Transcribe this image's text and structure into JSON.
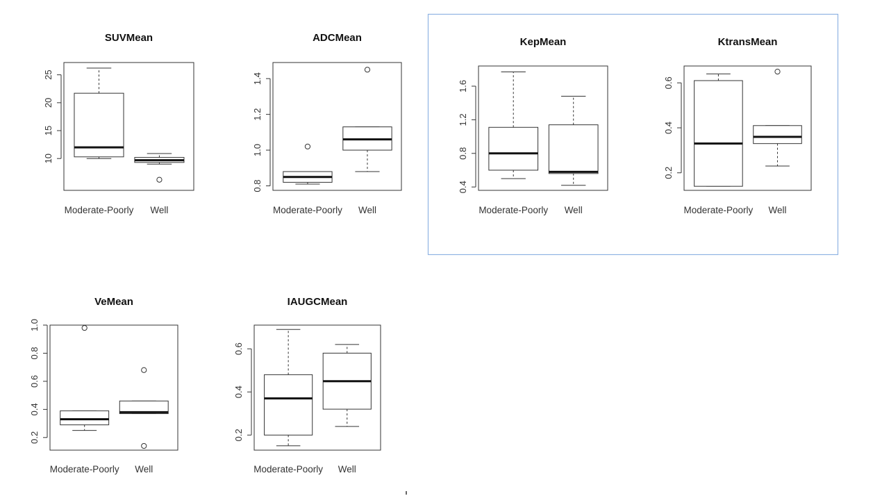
{
  "chart_data": [
    {
      "type": "boxplot",
      "title": "SUVMean",
      "categories": [
        "Moderate-Poorly",
        "Well"
      ],
      "ylim": [
        4.3,
        27.2
      ],
      "yticks": [
        10,
        15,
        20,
        25
      ],
      "boxes": [
        {
          "low": 10.0,
          "q1": 10.3,
          "median": 12.0,
          "q3": 21.7,
          "high": 26.2,
          "outliers": []
        },
        {
          "low": 9.0,
          "q1": 9.3,
          "median": 9.7,
          "q3": 10.2,
          "high": 10.9,
          "outliers": [
            6.2
          ]
        }
      ]
    },
    {
      "type": "boxplot",
      "title": "ADCMean",
      "categories": [
        "Moderate-Poorly",
        "Well"
      ],
      "ylim": [
        0.775,
        1.49
      ],
      "yticks": [
        0.8,
        1.0,
        1.2,
        1.4
      ],
      "yticklabels": [
        "0.8",
        "1.0",
        "1.2",
        "1.4"
      ],
      "boxes": [
        {
          "low": 0.81,
          "q1": 0.82,
          "median": 0.85,
          "q3": 0.88,
          "high": 0.88,
          "outliers": [
            1.02
          ]
        },
        {
          "low": 0.88,
          "q1": 1.0,
          "median": 1.06,
          "q3": 1.13,
          "high": 1.13,
          "outliers": [
            1.45
          ]
        }
      ]
    },
    {
      "type": "boxplot",
      "title": "KepMean",
      "categories": [
        "Moderate-Poorly",
        "Well"
      ],
      "ylim": [
        0.36,
        1.84
      ],
      "yticks": [
        0.4,
        0.8,
        1.2,
        1.6
      ],
      "yticklabels": [
        "0.4",
        "0.8",
        "1.2",
        "1.6"
      ],
      "boxes": [
        {
          "low": 0.5,
          "q1": 0.6,
          "median": 0.8,
          "q3": 1.11,
          "high": 1.77,
          "outliers": []
        },
        {
          "low": 0.42,
          "q1": 0.56,
          "median": 0.58,
          "q3": 1.14,
          "high": 1.48,
          "outliers": []
        }
      ]
    },
    {
      "type": "boxplot",
      "title": "KtransMean",
      "categories": [
        "Moderate-Poorly",
        "Well"
      ],
      "ylim": [
        0.122,
        0.675
      ],
      "yticks": [
        0.2,
        0.4,
        0.6
      ],
      "yticklabels": [
        "0.2",
        "0.4",
        "0.6"
      ],
      "boxes": [
        {
          "low": 0.14,
          "q1": 0.14,
          "median": 0.33,
          "q3": 0.61,
          "high": 0.64,
          "outliers": []
        },
        {
          "low": 0.23,
          "q1": 0.33,
          "median": 0.36,
          "q3": 0.41,
          "high": 0.41,
          "outliers": [
            0.65
          ]
        }
      ]
    },
    {
      "type": "boxplot",
      "title": "VeMean",
      "categories": [
        "Moderate-Poorly",
        "Well"
      ],
      "ylim": [
        0.11,
        1.0
      ],
      "yticks": [
        0.2,
        0.4,
        0.6,
        0.8,
        1.0
      ],
      "yticklabels": [
        "0.2",
        "0.4",
        "0.6",
        "0.8",
        "1.0"
      ],
      "boxes": [
        {
          "low": 0.25,
          "q1": 0.29,
          "median": 0.33,
          "q3": 0.39,
          "high": 0.39,
          "outliers": [
            0.98
          ]
        },
        {
          "low": 0.37,
          "q1": 0.37,
          "median": 0.38,
          "q3": 0.46,
          "high": 0.46,
          "outliers": [
            0.68,
            0.14
          ]
        }
      ]
    },
    {
      "type": "boxplot",
      "title": "IAUGCMean",
      "categories": [
        "Moderate-Poorly",
        "Well"
      ],
      "ylim": [
        0.13,
        0.71
      ],
      "yticks": [
        0.2,
        0.4,
        0.6
      ],
      "yticklabels": [
        "0.2",
        "0.4",
        "0.6"
      ],
      "boxes": [
        {
          "low": 0.15,
          "q1": 0.2,
          "median": 0.37,
          "q3": 0.48,
          "high": 0.69,
          "outliers": []
        },
        {
          "low": 0.24,
          "q1": 0.32,
          "median": 0.45,
          "q3": 0.58,
          "high": 0.62,
          "outliers": []
        }
      ]
    }
  ],
  "colors": {
    "highlight_border": "#8fb3e3",
    "ink": "#333333"
  }
}
